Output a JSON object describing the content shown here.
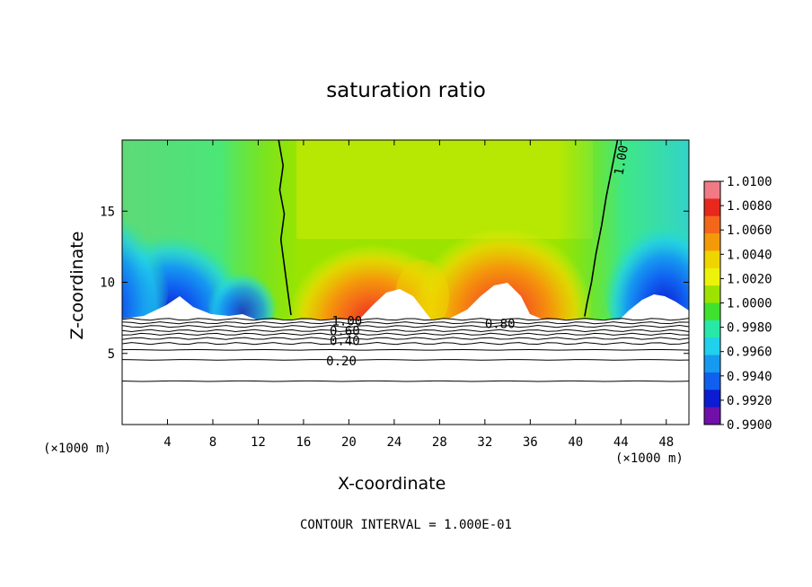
{
  "chart_data": {
    "type": "heatmap",
    "title": "saturation ratio",
    "xlabel": "X-coordinate",
    "ylabel": "Z-coordinate",
    "x_unit_label": "(×1000 m)",
    "footer": "CONTOUR INTERVAL = 1.000E-01",
    "xlim": [
      0,
      50
    ],
    "ylim": [
      0,
      20
    ],
    "x_ticks": [
      4,
      8,
      12,
      16,
      20,
      24,
      28,
      32,
      36,
      40,
      44,
      48
    ],
    "y_ticks": [
      5,
      10,
      15
    ],
    "colorbar": {
      "min": 0.99,
      "max": 1.01,
      "labels": [
        "1.0100",
        "1.0080",
        "1.0060",
        "1.0040",
        "1.0020",
        "1.0000",
        "0.9980",
        "0.9960",
        "0.9940",
        "0.9920",
        "0.9900"
      ],
      "colors": [
        "#f07a86",
        "#e8281c",
        "#f4661a",
        "#f49a0a",
        "#f0d400",
        "#ecf20a",
        "#9ce400",
        "#3ee22e",
        "#28e8a8",
        "#20d0ec",
        "#169af0",
        "#1060f0",
        "#0c1cd2",
        "#7010a8"
      ]
    },
    "contour_labels": [
      {
        "text": "1.00",
        "x": 18.5,
        "y": 7.1
      },
      {
        "text": "0.60",
        "x": 18.3,
        "y": 6.4
      },
      {
        "text": "0.40",
        "x": 18.3,
        "y": 5.7
      },
      {
        "text": "0.20",
        "x": 18.0,
        "y": 4.3
      },
      {
        "text": "0.80",
        "x": 32.0,
        "y": 6.9
      },
      {
        "text": "1.00",
        "x": 44.0,
        "y": 17.5
      }
    ],
    "saturation_contours": [
      [
        [
          13.8,
          20
        ],
        [
          14.2,
          18.2
        ],
        [
          13.9,
          16.5
        ],
        [
          14.3,
          14.8
        ],
        [
          14.0,
          13.0
        ],
        [
          14.3,
          11.2
        ],
        [
          14.6,
          9.4
        ],
        [
          14.9,
          7.7
        ]
      ],
      [
        [
          43.7,
          20
        ],
        [
          43.2,
          18.0
        ],
        [
          42.7,
          16.0
        ],
        [
          42.3,
          14.0
        ],
        [
          41.8,
          12.0
        ],
        [
          41.4,
          10.0
        ],
        [
          41.0,
          8.5
        ],
        [
          40.8,
          7.6
        ]
      ]
    ],
    "horizontal_contours": [
      7.4,
      7.15,
      6.9,
      6.6,
      6.35,
      6.05,
      5.7,
      5.25,
      4.55,
      3.05
    ]
  }
}
